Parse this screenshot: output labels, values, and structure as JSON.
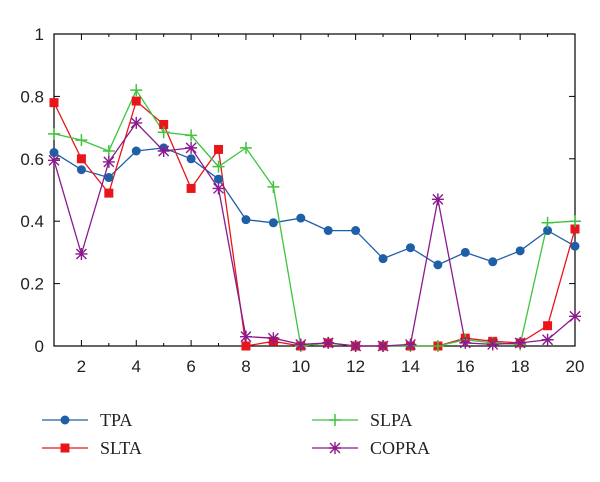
{
  "chart_data": {
    "type": "line",
    "title": "",
    "xlabel": "",
    "ylabel": "",
    "x": [
      1,
      2,
      3,
      4,
      5,
      6,
      7,
      8,
      9,
      10,
      11,
      12,
      13,
      14,
      15,
      16,
      17,
      18,
      19,
      20
    ],
    "xlim": [
      1,
      20
    ],
    "ylim": [
      0,
      1
    ],
    "xticks": [
      2,
      4,
      6,
      8,
      10,
      12,
      14,
      16,
      18,
      20
    ],
    "yticks": [
      0,
      0.2,
      0.4,
      0.6,
      0.8,
      1
    ],
    "ytick_labels": [
      "0",
      "0.2",
      "0.4",
      "0.6",
      "0.8",
      "1"
    ],
    "grid": false,
    "legend_position": "bottom",
    "series": [
      {
        "name": "TPA",
        "color": "#1f5fa8",
        "marker": "circle",
        "values": [
          0.62,
          0.565,
          0.54,
          0.625,
          0.635,
          0.6,
          0.535,
          0.405,
          0.395,
          0.41,
          0.37,
          0.37,
          0.28,
          0.315,
          0.26,
          0.3,
          0.27,
          0.305,
          0.37,
          0.32
        ]
      },
      {
        "name": "SLTA",
        "color": "#e8161b",
        "marker": "square",
        "values": [
          0.78,
          0.6,
          0.49,
          0.785,
          0.71,
          0.505,
          0.63,
          0.0,
          0.015,
          0.0,
          0.01,
          0.0,
          0.0,
          0.0,
          0.0,
          0.025,
          0.015,
          0.01,
          0.065,
          0.375
        ]
      },
      {
        "name": "SLPA",
        "color": "#3ec43e",
        "marker": "plus",
        "values": [
          0.68,
          0.66,
          0.625,
          0.82,
          0.685,
          0.675,
          0.575,
          0.635,
          0.51,
          0.0,
          0.01,
          0.0,
          0.0,
          0.0,
          0.0,
          0.02,
          0.01,
          0.005,
          0.395,
          0.4
        ]
      },
      {
        "name": "COPRA",
        "color": "#8a1a8e",
        "marker": "star",
        "values": [
          0.595,
          0.295,
          0.59,
          0.715,
          0.625,
          0.635,
          0.505,
          0.03,
          0.025,
          0.005,
          0.01,
          0.0,
          0.0,
          0.005,
          0.47,
          0.01,
          0.005,
          0.01,
          0.02,
          0.095
        ]
      }
    ]
  }
}
